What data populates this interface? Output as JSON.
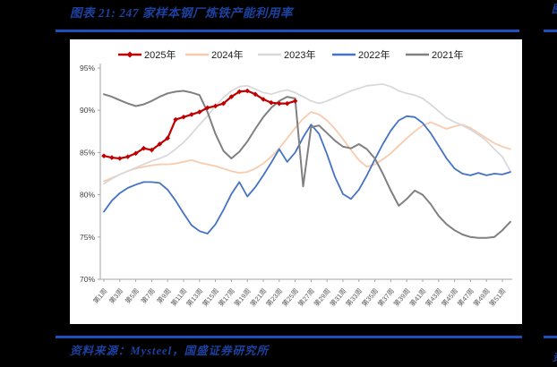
{
  "page": {
    "background": "#000000"
  },
  "figure": {
    "title": "图表 21: 247 家样本钢厂炼铁产能利用率",
    "source": "资料来源：Mysteel，国盛证券研究所",
    "title_color": "#1C419F",
    "rule_color": "#1E4FBF"
  },
  "next_figure": {
    "title_fragment": "图",
    "source_fragment": "资"
  },
  "chart_data": {
    "type": "line",
    "x_unit": "周",
    "x_weeks": 52,
    "grid": false,
    "legend_position": "top",
    "ylim": [
      70,
      95
    ],
    "y_tick_values": [
      95,
      90,
      85,
      80,
      75,
      70
    ],
    "y_tick_labels": [
      "95%",
      "90%",
      "85%",
      "80%",
      "75%",
      "70%"
    ],
    "x_tick_labels": [
      "第1周",
      "第3周",
      "第5周",
      "第7周",
      "第9周",
      "第11周",
      "第13周",
      "第15周",
      "第17周",
      "第19周",
      "第21周",
      "第23周",
      "第25周",
      "第27周",
      "第29周",
      "第31周",
      "第33周",
      "第35周",
      "第37周",
      "第39周",
      "第41周",
      "第43周",
      "第45周",
      "第47周",
      "第49周",
      "第51周"
    ],
    "axis_color": "#A6A6A6",
    "tick_label_color": "#595959",
    "series": [
      {
        "name": "2025年",
        "color": "#C00000",
        "marker": "diamond",
        "width": 2.2,
        "values": [
          84.6,
          84.4,
          84.3,
          84.5,
          84.9,
          85.5,
          85.3,
          86.0,
          86.7,
          88.9,
          89.2,
          89.5,
          89.8,
          90.3,
          90.5,
          90.8,
          91.6,
          92.2,
          92.3,
          91.9,
          91.3,
          90.9,
          90.8,
          90.8,
          91.1
        ]
      },
      {
        "name": "2024年",
        "color": "#F8CBAD",
        "marker": "none",
        "width": 1.8,
        "values": [
          81.6,
          82.0,
          82.4,
          82.8,
          83.1,
          83.3,
          83.5,
          83.6,
          83.6,
          83.7,
          83.9,
          84.1,
          83.8,
          83.6,
          83.4,
          83.1,
          82.8,
          82.6,
          82.7,
          83.1,
          83.7,
          84.5,
          85.5,
          86.7,
          87.9,
          89.0,
          89.8,
          89.5,
          88.8,
          87.8,
          86.6,
          85.3,
          84.1,
          83.3,
          83.6,
          84.2,
          84.9,
          85.8,
          86.7,
          87.5,
          88.2,
          88.6,
          88.2,
          87.8,
          88.1,
          88.3,
          87.9,
          87.3,
          86.7,
          86.1,
          85.7,
          85.4
        ]
      },
      {
        "name": "2023年",
        "color": "#D9D9D9",
        "marker": "none",
        "width": 1.8,
        "values": [
          81.3,
          81.9,
          82.4,
          82.8,
          83.2,
          83.6,
          84.0,
          84.3,
          84.7,
          85.4,
          86.2,
          87.2,
          88.3,
          89.3,
          90.5,
          91.5,
          92.3,
          92.8,
          92.9,
          92.5,
          92.1,
          91.9,
          92.2,
          92.4,
          92.1,
          91.6,
          91.1,
          90.8,
          91.1,
          91.5,
          91.9,
          92.3,
          92.6,
          92.9,
          93.0,
          93.1,
          92.8,
          92.3,
          92.0,
          91.8,
          91.4,
          90.7,
          89.9,
          89.1,
          88.6,
          88.2,
          87.7,
          87.1,
          86.4,
          85.4,
          84.5,
          82.8
        ]
      },
      {
        "name": "2022年",
        "color": "#4472C4",
        "marker": "none",
        "width": 1.8,
        "values": [
          78.0,
          79.3,
          80.2,
          80.8,
          81.2,
          81.5,
          81.5,
          81.4,
          80.6,
          79.3,
          77.8,
          76.4,
          75.7,
          75.4,
          76.5,
          78.2,
          80.1,
          81.5,
          79.8,
          80.9,
          82.3,
          83.8,
          85.4,
          83.9,
          85.0,
          86.8,
          88.3,
          87.2,
          84.8,
          82.1,
          80.1,
          79.5,
          80.6,
          82.3,
          84.2,
          86.0,
          87.6,
          88.8,
          89.3,
          89.2,
          88.5,
          87.3,
          85.8,
          84.3,
          83.1,
          82.5,
          82.3,
          82.6,
          82.3,
          82.5,
          82.4,
          82.7
        ]
      },
      {
        "name": "2021年",
        "color": "#808080",
        "marker": "none",
        "width": 2.0,
        "values": [
          91.9,
          91.6,
          91.2,
          90.8,
          90.5,
          90.7,
          91.1,
          91.6,
          92.0,
          92.2,
          92.3,
          92.1,
          91.8,
          89.8,
          87.2,
          85.2,
          84.3,
          85.1,
          86.3,
          87.8,
          89.2,
          90.3,
          91.1,
          91.6,
          91.4,
          81.0,
          88.0,
          88.2,
          87.3,
          86.4,
          85.7,
          85.5,
          86.0,
          85.4,
          84.3,
          82.5,
          80.5,
          78.7,
          79.5,
          80.5,
          80.0,
          78.9,
          77.5,
          76.5,
          75.8,
          75.3,
          75.0,
          74.9,
          74.9,
          75.0,
          75.8,
          76.8
        ]
      }
    ]
  }
}
